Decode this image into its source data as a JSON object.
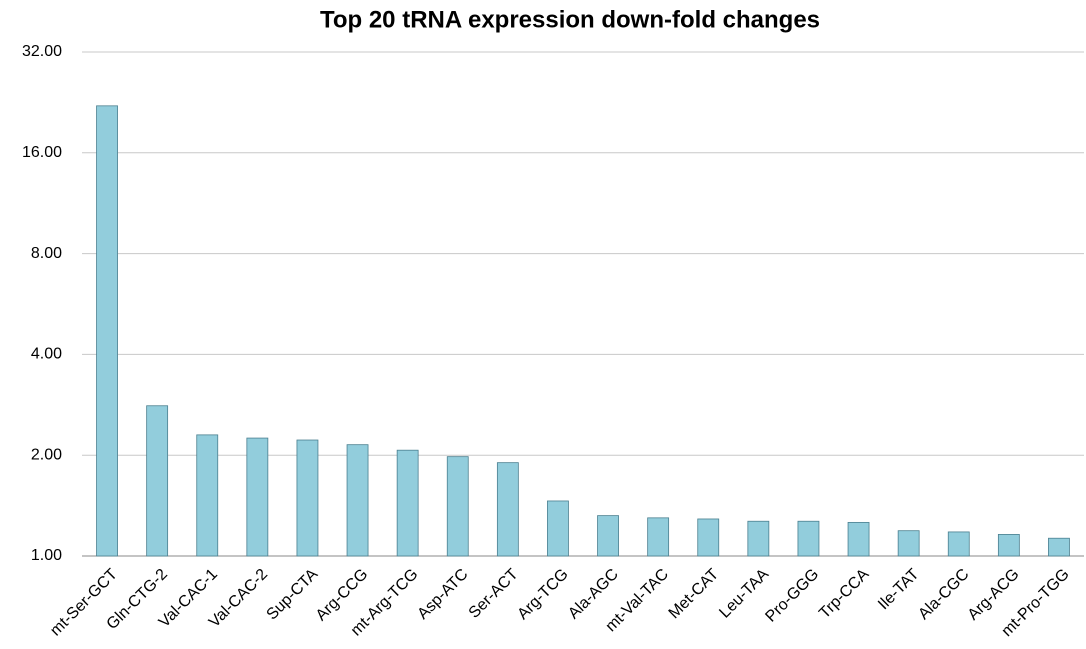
{
  "chart_data": {
    "type": "bar",
    "title": "Top 20 tRNA expression down-fold changes",
    "categories": [
      "mt-Ser-GCT",
      "Gln-CTG-2",
      "Val-CAC-1",
      "Val-CAC-2",
      "Sup-CTA",
      "Arg-CCG",
      "mt-Arg-TCG",
      "Asp-ATC",
      "Ser-ACT",
      "Arg-TCG",
      "Ala-AGC",
      "mt-Val-TAC",
      "Met-CAT",
      "Leu-TAA",
      "Pro-GGG",
      "Trp-CCA",
      "Ile-TAT",
      "Ala-CGC",
      "Arg-ACG",
      "mt-Pro-TGG"
    ],
    "values": [
      22.1,
      2.81,
      2.3,
      2.25,
      2.22,
      2.15,
      2.07,
      1.98,
      1.9,
      1.46,
      1.32,
      1.3,
      1.29,
      1.27,
      1.27,
      1.26,
      1.19,
      1.18,
      1.16,
      1.13
    ],
    "color": "#92cddc",
    "ylim": [
      1,
      32
    ],
    "log_scale": true,
    "grid": true,
    "yticks": [
      {
        "value": 1,
        "label": "1.00"
      },
      {
        "value": 2,
        "label": "2.00"
      },
      {
        "value": 4,
        "label": "4.00"
      },
      {
        "value": 8,
        "label": "8.00"
      },
      {
        "value": 16,
        "label": "16.00"
      },
      {
        "value": 32,
        "label": "32.00"
      }
    ]
  }
}
